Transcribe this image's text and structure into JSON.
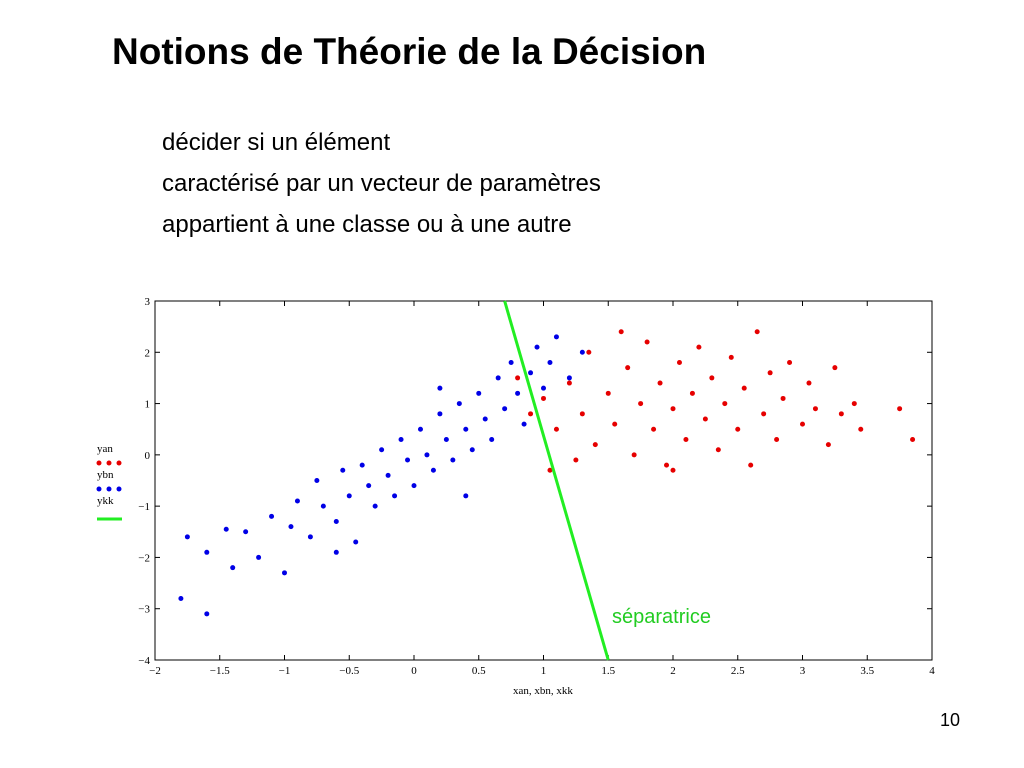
{
  "title": "Notions de Théorie de la Décision",
  "body": [
    "décider si un élément",
    "caractérisé par un vecteur de paramètres",
    "appartient à une classe ou à une autre"
  ],
  "page_number": "10",
  "chart_data": {
    "type": "scatter",
    "x_label": "xan, xbn, xkk",
    "annotation": "séparatrice",
    "xlim": [
      -2,
      4
    ],
    "ylim": [
      -4,
      3
    ],
    "xticks": [
      {
        "value": -2,
        "label": "−2"
      },
      {
        "value": -1.5,
        "label": "−1.5"
      },
      {
        "value": -1,
        "label": "−1"
      },
      {
        "value": -0.5,
        "label": "−0.5"
      },
      0,
      0.5,
      1,
      1.5,
      2,
      2.5,
      3,
      3.5,
      4
    ],
    "yticks": [
      {
        "value": -4,
        "label": "−4"
      },
      {
        "value": -3,
        "label": "−3"
      },
      {
        "value": -2,
        "label": "−2"
      },
      {
        "value": -1,
        "label": "−1"
      },
      0,
      1,
      2,
      3
    ],
    "legend": "left",
    "series": [
      {
        "name": "yan",
        "color": "#e60000",
        "mode": "markers",
        "x": [
          0.8,
          0.9,
          1.0,
          1.05,
          1.1,
          1.2,
          1.3,
          1.35,
          1.4,
          1.5,
          1.55,
          1.6,
          1.65,
          1.7,
          1.75,
          1.8,
          1.85,
          1.9,
          1.95,
          2.0,
          2.05,
          2.1,
          2.15,
          2.2,
          2.25,
          2.3,
          2.35,
          2.4,
          2.45,
          2.5,
          2.55,
          2.6,
          2.65,
          2.7,
          2.75,
          2.8,
          2.85,
          2.9,
          3.0,
          3.05,
          3.1,
          3.2,
          3.25,
          3.3,
          3.4,
          3.45,
          3.75,
          3.85,
          1.25,
          2.0
        ],
        "values": [
          1.5,
          0.8,
          1.1,
          -0.3,
          0.5,
          1.4,
          0.8,
          2.0,
          0.2,
          1.2,
          0.6,
          2.4,
          1.7,
          0.0,
          1.0,
          2.2,
          0.5,
          1.4,
          -0.2,
          0.9,
          1.8,
          0.3,
          1.2,
          2.1,
          0.7,
          1.5,
          0.1,
          1.0,
          1.9,
          0.5,
          1.3,
          -0.2,
          2.4,
          0.8,
          1.6,
          0.3,
          1.1,
          1.8,
          0.6,
          1.4,
          0.9,
          0.2,
          1.7,
          0.8,
          1.0,
          0.5,
          0.9,
          0.3,
          -0.1,
          -0.3
        ]
      },
      {
        "name": "ybn",
        "color": "#0000e6",
        "mode": "markers",
        "x": [
          -1.8,
          -1.6,
          -1.75,
          -1.6,
          -1.4,
          -1.3,
          -1.2,
          -1.1,
          -1.0,
          -0.95,
          -0.9,
          -0.8,
          -0.75,
          -0.7,
          -0.6,
          -0.55,
          -0.5,
          -0.45,
          -0.4,
          -0.35,
          -0.3,
          -0.25,
          -0.2,
          -0.15,
          -0.1,
          -0.05,
          0,
          0.05,
          0.1,
          0.15,
          0.2,
          0.25,
          0.3,
          0.35,
          0.4,
          0.45,
          0.5,
          0.55,
          0.6,
          0.65,
          0.7,
          0.75,
          0.8,
          0.85,
          0.9,
          0.95,
          1.0,
          1.05,
          1.1,
          1.2,
          1.3,
          -0.6,
          0.4,
          -1.45,
          0.2
        ],
        "values": [
          -2.8,
          -3.1,
          -1.6,
          -1.9,
          -2.2,
          -1.5,
          -2.0,
          -1.2,
          -2.3,
          -1.4,
          -0.9,
          -1.6,
          -0.5,
          -1.0,
          -1.3,
          -0.3,
          -0.8,
          -1.7,
          -0.2,
          -0.6,
          -1.0,
          0.1,
          -0.4,
          -0.8,
          0.3,
          -0.1,
          -0.6,
          0.5,
          0.0,
          -0.3,
          0.8,
          0.3,
          -0.1,
          1.0,
          0.5,
          0.1,
          1.2,
          0.7,
          0.3,
          1.5,
          0.9,
          1.8,
          1.2,
          0.6,
          1.6,
          2.1,
          1.3,
          1.8,
          2.3,
          1.5,
          2.0,
          -1.9,
          -0.8,
          -1.45,
          1.3
        ]
      },
      {
        "name": "ykk",
        "color": "#22ee22",
        "mode": "line",
        "x": [
          0.7,
          1.5
        ],
        "values": [
          3,
          -4
        ]
      }
    ]
  }
}
